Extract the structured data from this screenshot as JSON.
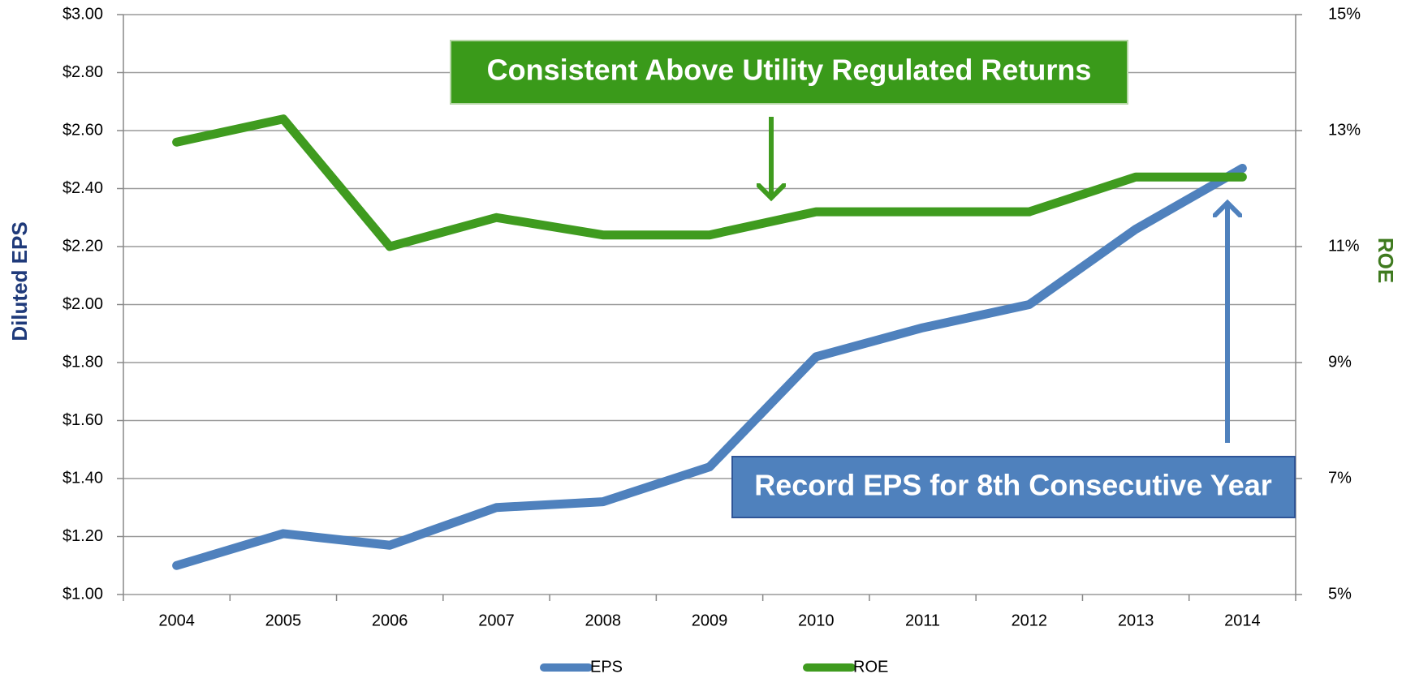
{
  "chart_data": {
    "type": "line",
    "categories": [
      "2004",
      "2005",
      "2006",
      "2007",
      "2008",
      "2009",
      "2010",
      "2011",
      "2012",
      "2013",
      "2014"
    ],
    "series": [
      {
        "name": "EPS",
        "color": "#4f81bd",
        "values": [
          1.1,
          1.21,
          1.17,
          1.3,
          1.32,
          1.44,
          1.82,
          1.92,
          2.0,
          2.26,
          2.47
        ]
      },
      {
        "name": "ROE",
        "color": "#3f9b1f",
        "axis": "y2",
        "values": [
          12.8,
          13.2,
          11.0,
          11.5,
          11.2,
          11.2,
          11.6,
          11.6,
          11.6,
          12.2,
          12.2
        ]
      }
    ],
    "ylabel": "Diluted EPS",
    "y2label": "ROE",
    "ylim": [
      1.0,
      3.0
    ],
    "yticks": [
      {
        "value": 1.0,
        "label": "$1.00"
      },
      {
        "value": 1.2,
        "label": "$1.20"
      },
      {
        "value": 1.4,
        "label": "$1.40"
      },
      {
        "value": 1.6,
        "label": "$1.60"
      },
      {
        "value": 1.8,
        "label": "$1.80"
      },
      {
        "value": 2.0,
        "label": "$2.00"
      },
      {
        "value": 2.2,
        "label": "$2.20"
      },
      {
        "value": 2.4,
        "label": "$2.40"
      },
      {
        "value": 2.6,
        "label": "$2.60"
      },
      {
        "value": 2.8,
        "label": "$2.80"
      },
      {
        "value": 3.0,
        "label": "$3.00"
      }
    ],
    "y2lim": [
      5,
      15
    ],
    "y2ticks": [
      {
        "value": 5,
        "label": "5%"
      },
      {
        "value": 7,
        "label": "7%"
      },
      {
        "value": 9,
        "label": "9%"
      },
      {
        "value": 11,
        "label": "11%"
      },
      {
        "value": 13,
        "label": "13%"
      },
      {
        "value": 15,
        "label": "15%"
      }
    ],
    "grid": true,
    "legend": "bottom",
    "annotations": [
      "Consistent Above Utility Regulated Returns",
      "Record EPS for 8th Consecutive Year"
    ]
  }
}
